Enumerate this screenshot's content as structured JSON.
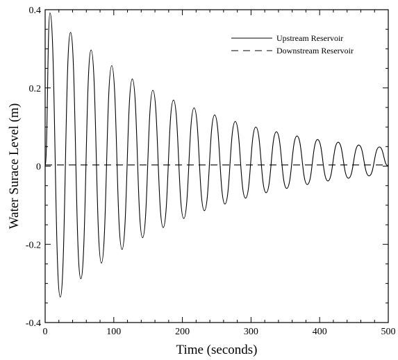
{
  "chart_data": {
    "type": "line",
    "xlabel": "Time (seconds)",
    "ylabel": "Water Surace Level (m)",
    "xlim": [
      0,
      500
    ],
    "ylim": [
      -0.4,
      0.4
    ],
    "xticks": [
      0,
      100,
      200,
      300,
      400,
      500
    ],
    "yticks": [
      -0.4,
      -0.2,
      0,
      0.2,
      0.4
    ],
    "xtick_labels": [
      "0",
      "100",
      "200",
      "300",
      "400",
      "500"
    ],
    "ytick_labels": [
      "-0.4",
      "-0.2",
      "0",
      "0.2",
      "0.4"
    ],
    "grid": false,
    "legend_position": "top-right",
    "series": [
      {
        "name": "Upstream Reservoir",
        "style": "solid",
        "color": "#000000",
        "x": [
          0,
          7,
          22,
          37,
          52,
          67,
          82,
          97,
          112,
          127,
          142,
          157,
          172,
          187,
          202,
          217,
          232,
          247,
          262,
          277,
          292,
          307,
          322,
          337,
          352,
          367,
          382,
          397,
          412,
          427,
          442,
          457,
          472,
          487,
          500
        ],
        "y": [
          0,
          0.392,
          -0.335,
          0.342,
          -0.288,
          0.297,
          -0.248,
          0.257,
          -0.213,
          0.223,
          -0.183,
          0.194,
          -0.157,
          0.169,
          -0.134,
          0.149,
          -0.114,
          0.131,
          -0.097,
          0.114,
          -0.082,
          0.1,
          -0.068,
          0.088,
          -0.057,
          0.077,
          -0.047,
          0.068,
          -0.038,
          0.061,
          -0.031,
          0.054,
          -0.025,
          0.049,
          0.0
        ]
      },
      {
        "name": "Downstream Reservoir",
        "style": "dashed",
        "color": "#000000",
        "x": [
          0,
          500
        ],
        "y": [
          0.003,
          0.003
        ]
      }
    ]
  }
}
